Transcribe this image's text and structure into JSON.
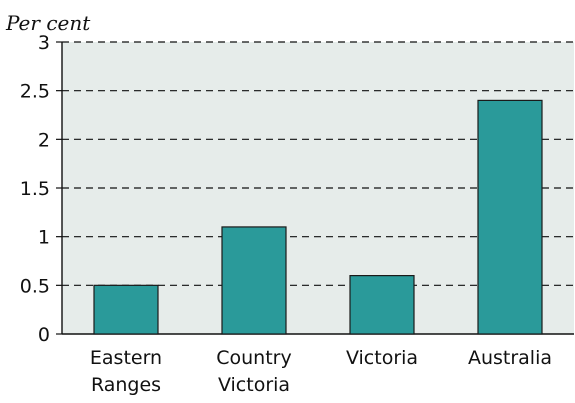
{
  "chart_data": {
    "type": "bar",
    "ylabel": "Per cent",
    "categories": [
      [
        "Eastern",
        "Ranges"
      ],
      [
        "Country",
        "Victoria"
      ],
      [
        "Victoria"
      ],
      [
        "Australia"
      ]
    ],
    "values": [
      0.5,
      1.1,
      0.6,
      2.4
    ],
    "ylim": [
      0,
      3
    ],
    "yticks": [
      "0",
      "0.5",
      "1",
      "1.5",
      "2",
      "2.5",
      "3"
    ],
    "grid": true,
    "grid_style": "dashed",
    "colors": {
      "bar": "#2a9a9a",
      "bar_stroke": "#1a1a1a",
      "plot_background": "#e6ecea",
      "grid": "#111111"
    }
  }
}
